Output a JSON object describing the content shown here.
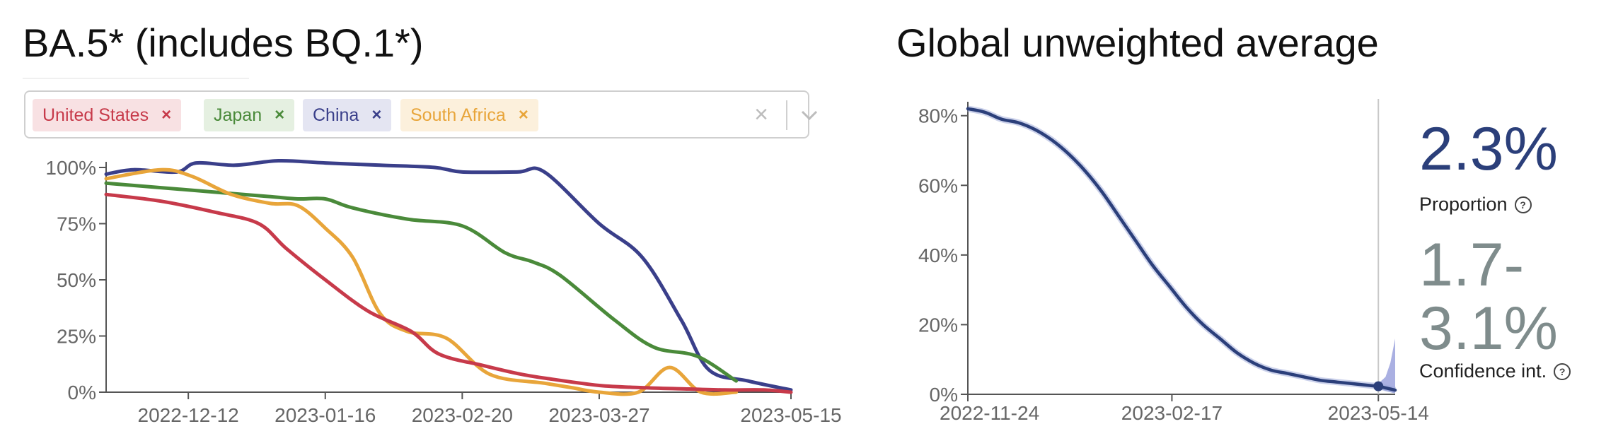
{
  "left_panel": {
    "title": "BA.5* (includes BQ.1*)",
    "selected": [
      {
        "label": "United States",
        "color": "#c73a4a",
        "bg": "#f8e1e3"
      },
      {
        "label": "Japan",
        "color": "#4a8a3a",
        "bg": "#e5f0e1"
      },
      {
        "label": "China",
        "color": "#3a3f8a",
        "bg": "#e4e5f2"
      },
      {
        "label": "South Africa",
        "color": "#e8a53a",
        "bg": "#fcf0dc"
      }
    ],
    "remove_glyph": "×",
    "clear_glyph": "×"
  },
  "right_panel": {
    "title": "Global unweighted average",
    "proportion_value": "2.3%",
    "proportion_label": "Proportion",
    "ci_value": "1.7-3.1%",
    "ci_label": "Confidence int.",
    "help_glyph": "?"
  },
  "chart_data": [
    {
      "type": "line",
      "title": "BA.5* (includes BQ.1*)",
      "xlabel": "",
      "ylabel": "",
      "x_ticks": [
        "2022-12-12",
        "2023-01-16",
        "2023-02-20",
        "2023-03-27",
        "2023-05-15"
      ],
      "x_range": [
        "2022-11-21",
        "2023-05-15"
      ],
      "y_ticks": [
        "0%",
        "25%",
        "50%",
        "75%",
        "100%"
      ],
      "ylim": [
        0,
        100
      ],
      "grid": false,
      "series": [
        {
          "name": "United States",
          "color": "#c73a4a",
          "x": [
            "2022-11-21",
            "2022-12-05",
            "2022-12-19",
            "2022-12-30",
            "2023-01-06",
            "2023-01-16",
            "2023-01-27",
            "2023-02-07",
            "2023-02-14",
            "2023-02-25",
            "2023-03-07",
            "2023-03-14",
            "2023-03-27",
            "2023-04-07",
            "2023-04-17",
            "2023-04-28",
            "2023-05-08",
            "2023-05-15"
          ],
          "y": [
            88,
            85,
            80,
            75,
            64,
            50,
            36,
            27,
            17,
            12,
            8,
            6,
            3,
            2,
            1.5,
            1,
            1,
            0
          ]
        },
        {
          "name": "Japan",
          "color": "#4a8a3a",
          "x": [
            "2022-11-21",
            "2022-12-05",
            "2022-12-19",
            "2023-01-02",
            "2023-01-09",
            "2023-01-16",
            "2023-01-23",
            "2023-02-06",
            "2023-02-20",
            "2023-03-03",
            "2023-03-10",
            "2023-03-17",
            "2023-03-31",
            "2023-04-10",
            "2023-04-21",
            "2023-05-01"
          ],
          "y": [
            93,
            91,
            89,
            87,
            86,
            86,
            82,
            77,
            74,
            62,
            58,
            52,
            32,
            20,
            16,
            5
          ]
        },
        {
          "name": "China",
          "color": "#3a3f8a",
          "x": [
            "2022-11-21",
            "2022-11-28",
            "2022-12-09",
            "2022-12-14",
            "2022-12-24",
            "2023-01-04",
            "2023-01-16",
            "2023-01-30",
            "2023-02-13",
            "2023-02-20",
            "2023-03-06",
            "2023-03-13",
            "2023-03-27",
            "2023-04-07",
            "2023-04-17",
            "2023-04-24",
            "2023-05-04",
            "2023-05-15"
          ],
          "y": [
            97,
            99,
            98,
            102,
            101,
            103,
            102,
            101,
            100,
            98,
            98,
            98,
            75,
            60,
            32,
            10,
            5,
            1
          ]
        },
        {
          "name": "South Africa",
          "color": "#e8a53a",
          "x": [
            "2022-11-21",
            "2022-12-05",
            "2022-12-13",
            "2022-12-23",
            "2023-01-02",
            "2023-01-09",
            "2023-01-16",
            "2023-01-23",
            "2023-01-30",
            "2023-02-06",
            "2023-02-16",
            "2023-02-27",
            "2023-03-13",
            "2023-03-20",
            "2023-03-27",
            "2023-04-06",
            "2023-04-14",
            "2023-04-22",
            "2023-05-01"
          ],
          "y": [
            95,
            99,
            96,
            88,
            84,
            83,
            73,
            60,
            35,
            27,
            24,
            8,
            4,
            2,
            0,
            0,
            11,
            0,
            0
          ]
        }
      ]
    },
    {
      "type": "area",
      "title": "Global unweighted average",
      "xlabel": "",
      "ylabel": "",
      "x_ticks": [
        "2022-11-24",
        "2023-02-17",
        "2023-05-14"
      ],
      "x_range": [
        "2022-11-24",
        "2023-05-21"
      ],
      "y_ticks": [
        "0%",
        "20%",
        "40%",
        "60%",
        "80%"
      ],
      "ylim": [
        0,
        84
      ],
      "grid": false,
      "vertical_marker": "2023-05-14",
      "series": [
        {
          "name": "Proportion",
          "color": "#2b3f7a",
          "x": [
            "2022-11-24",
            "2022-12-01",
            "2022-12-08",
            "2022-12-15",
            "2022-12-22",
            "2022-12-29",
            "2023-01-05",
            "2023-01-12",
            "2023-01-19",
            "2023-01-26",
            "2023-02-02",
            "2023-02-09",
            "2023-02-16",
            "2023-02-23",
            "2023-03-02",
            "2023-03-09",
            "2023-03-16",
            "2023-03-23",
            "2023-03-30",
            "2023-04-06",
            "2023-04-13",
            "2023-04-20",
            "2023-04-27",
            "2023-05-04",
            "2023-05-11",
            "2023-05-14",
            "2023-05-21"
          ],
          "y": [
            82,
            81,
            79,
            78,
            76,
            73,
            69,
            64,
            58,
            51,
            44,
            37,
            31,
            25,
            20,
            16,
            12,
            9,
            7,
            6,
            5,
            4,
            3.5,
            3,
            2.5,
            2.3,
            1.2
          ]
        }
      ],
      "confidence_band": {
        "x": [
          "2023-05-14",
          "2023-05-17",
          "2023-05-19",
          "2023-05-21"
        ],
        "lower": [
          1.7,
          1.0,
          0.6,
          0.3
        ],
        "upper": [
          3.1,
          5,
          9,
          16
        ]
      },
      "annotations": {
        "proportion": "2.3%",
        "confidence_interval": "1.7-3.1%"
      }
    }
  ]
}
